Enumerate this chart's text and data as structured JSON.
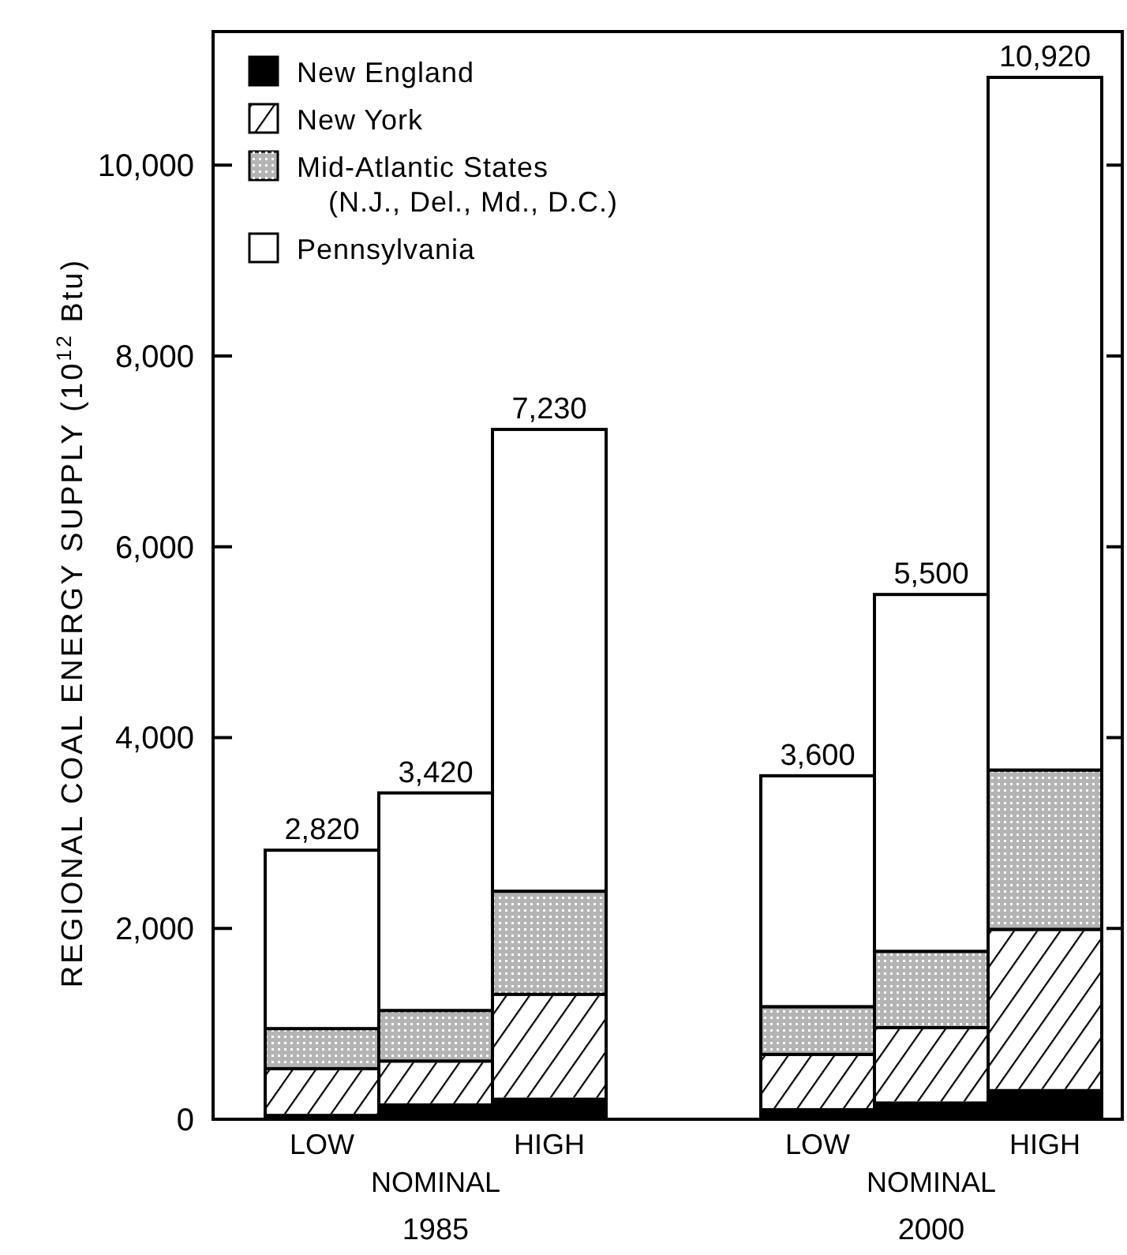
{
  "chart_data": {
    "type": "bar",
    "stacked": true,
    "ylabel": "REGIONAL COAL ENERGY SUPPLY (10$^{12}$ Btu)",
    "categories": [
      "LOW",
      "NOMINAL",
      "HIGH",
      "LOW",
      "NOMINAL",
      "HIGH"
    ],
    "series": [
      {
        "name": "New England",
        "color": "#000000",
        "values": [
          40,
          150,
          210,
          100,
          170,
          300
        ]
      },
      {
        "name": "New York",
        "color": "#ffffff",
        "values": [
          490,
          460,
          1100,
          580,
          790,
          1690
        ]
      },
      {
        "name": "Mid-Atlantic States\n(N.J., Del., Md., D.C.)",
        "color": "#b4b4b4",
        "values": [
          420,
          530,
          1080,
          500,
          800,
          1670
        ]
      },
      {
        "name": "Pennsylvania",
        "color": "#ffffff",
        "values": [
          1870,
          2280,
          4840,
          2420,
          3740,
          7260
        ]
      }
    ],
    "totals": [
      "2,820",
      "3,420",
      "7,230",
      "3,600",
      "5,500",
      "10,920"
    ],
    "annotations": [
      "1985",
      "2000"
    ],
    "ylim": [
      0,
      11400
    ],
    "yticks": [
      {
        "value": 0,
        "label": "0"
      },
      {
        "value": 2000,
        "label": "2,000"
      },
      {
        "value": 4000,
        "label": "4,000"
      },
      {
        "value": 6000,
        "label": "6,000"
      },
      {
        "value": 8000,
        "label": "8,000"
      },
      {
        "value": 10000,
        "label": "10,000"
      }
    ],
    "legend": "top left"
  }
}
